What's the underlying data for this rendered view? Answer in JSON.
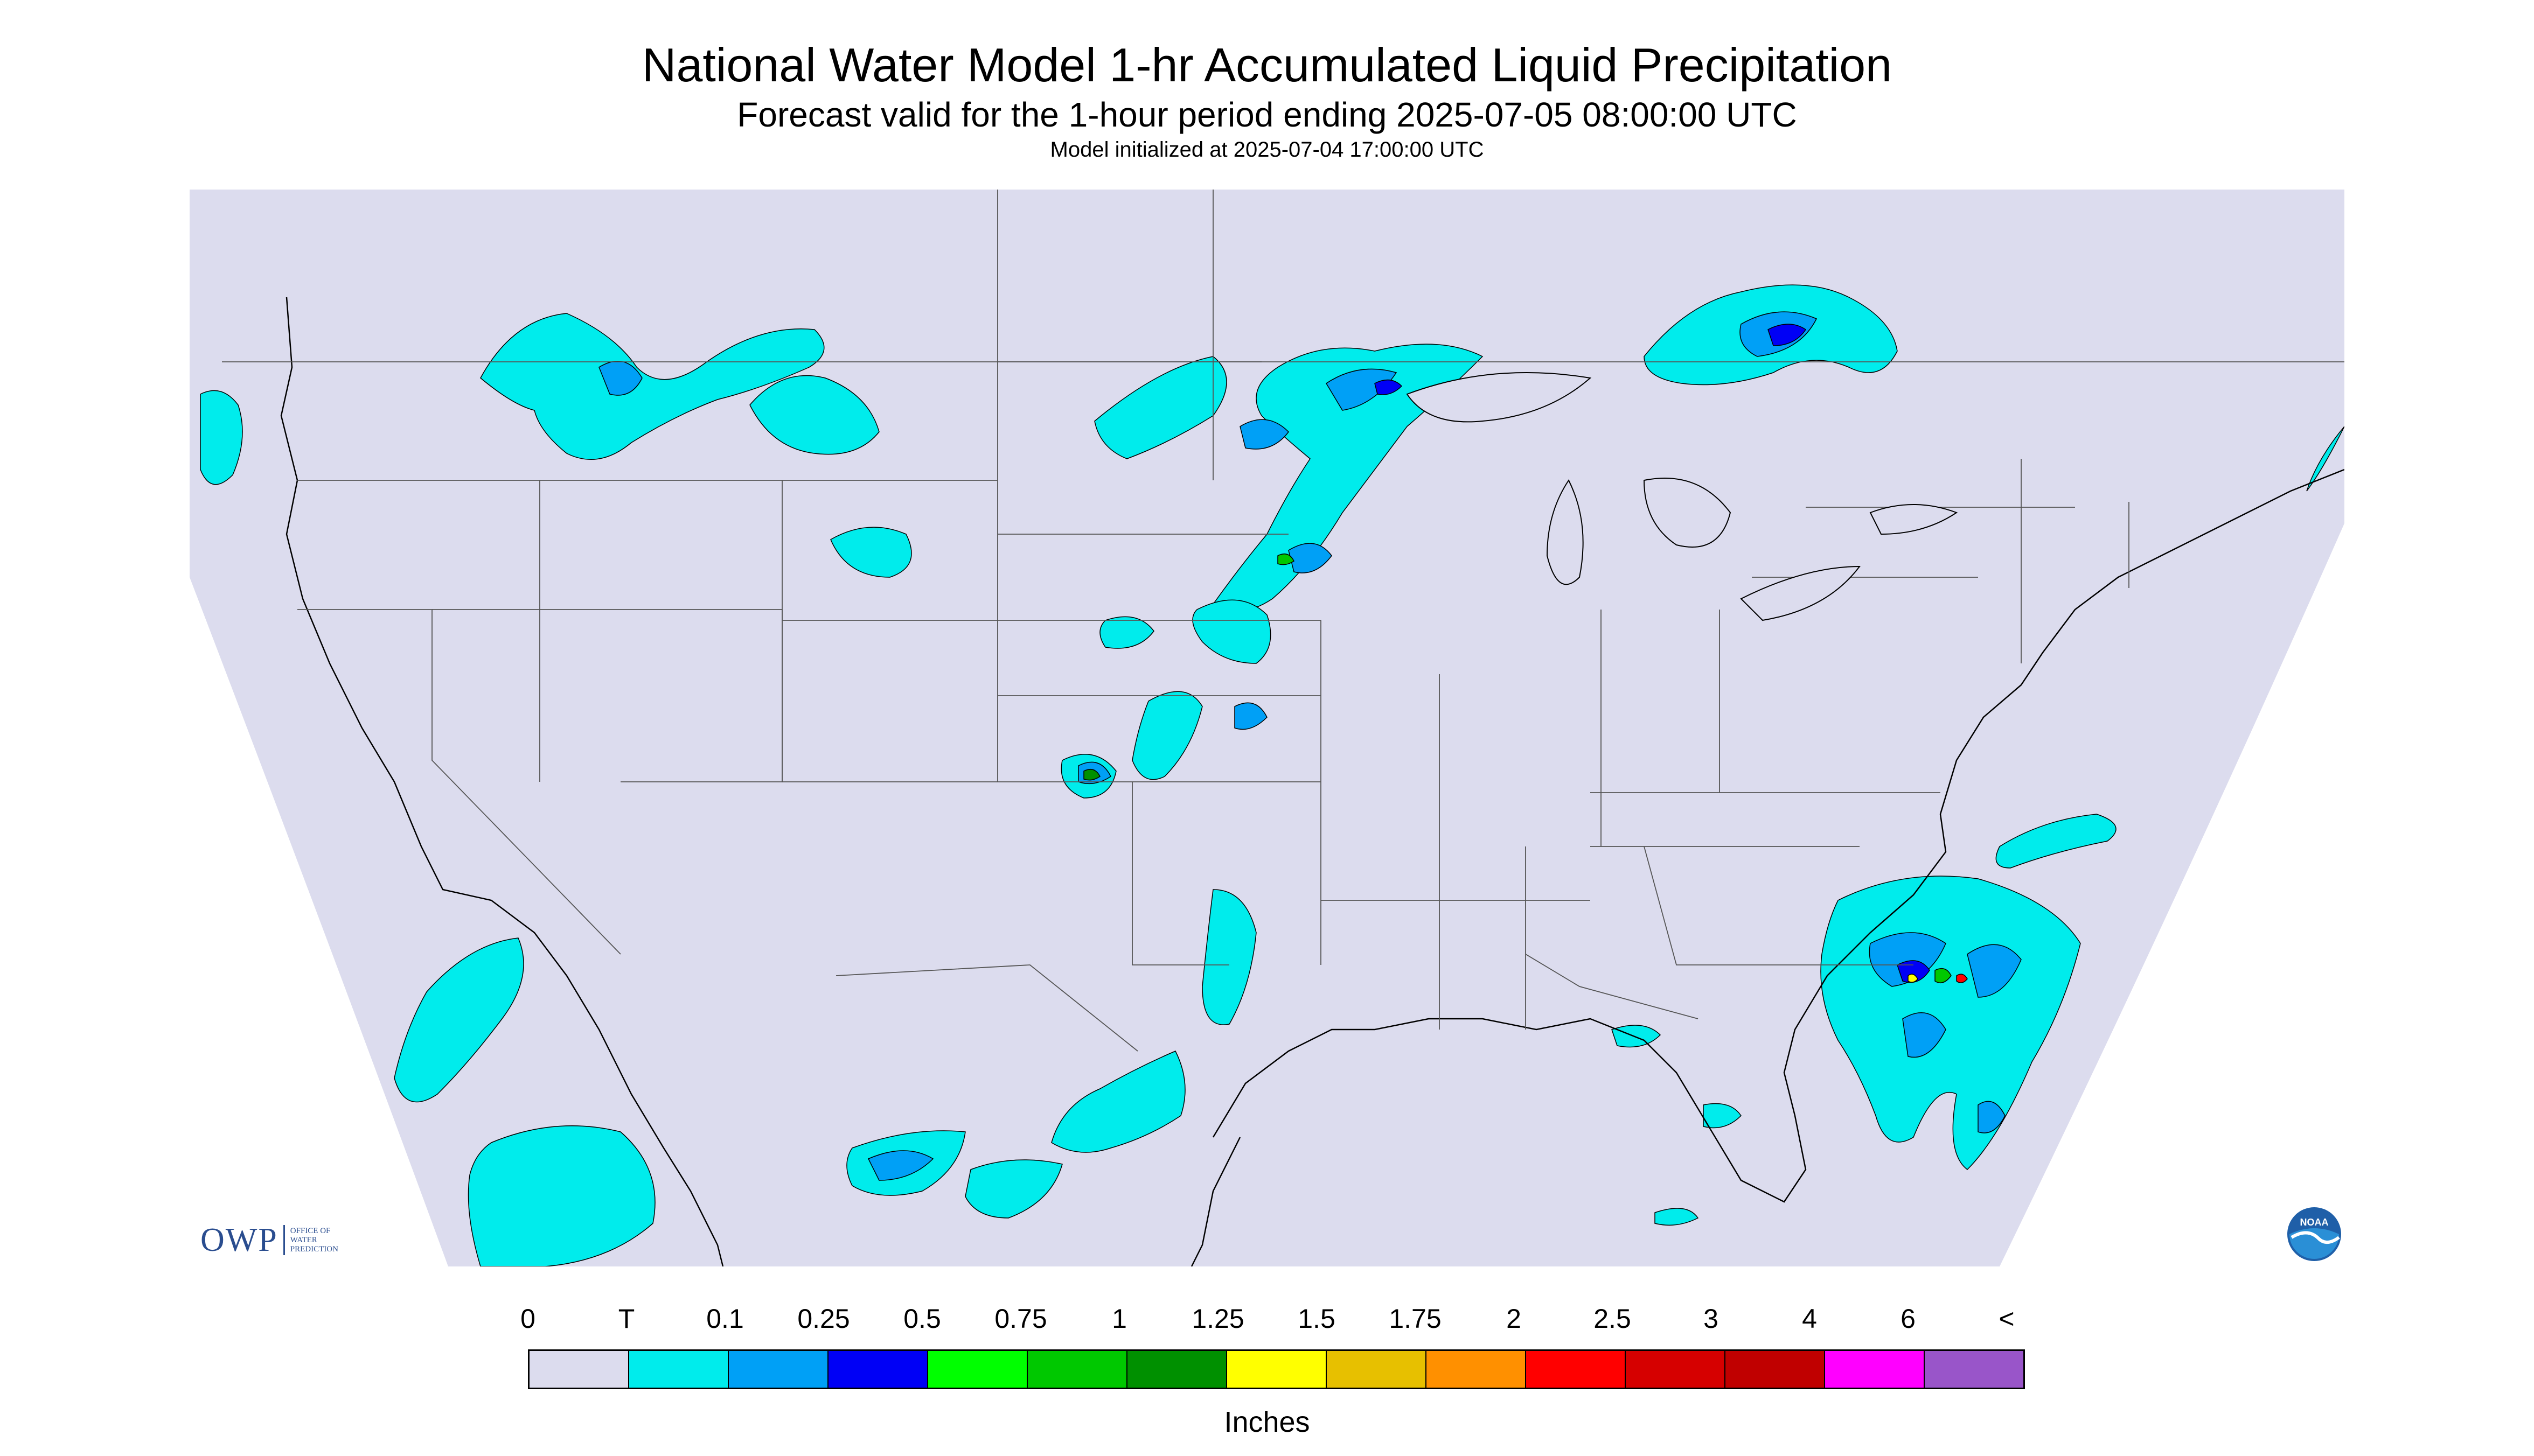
{
  "title": "National Water Model 1-hr Accumulated Liquid Precipitation",
  "subtitle": "Forecast valid for the 1-hour period ending 2025-07-05 08:00:00 UTC",
  "init_line": "Model initialized at 2025-07-04 17:00:00 UTC",
  "legend": {
    "labels": [
      "0",
      "T",
      "0.1",
      "0.25",
      "0.5",
      "0.75",
      "1",
      "1.25",
      "1.5",
      "1.75",
      "2",
      "2.5",
      "3",
      "4",
      "6",
      "<"
    ],
    "colors": [
      "#dcdcee",
      "#00ecec",
      "#00a0f6",
      "#0000f6",
      "#00ff00",
      "#00c800",
      "#009000",
      "#ffff00",
      "#e7c000",
      "#ff9000",
      "#ff0000",
      "#d60000",
      "#c00000",
      "#ff00ff",
      "#9955c9"
    ],
    "units": "Inches"
  },
  "colors": {
    "background": "#dcdcee",
    "outside": "#ffffff",
    "boundary": "#555555",
    "coast": "#000000"
  },
  "logos": {
    "owp_text": "OWP",
    "owp_small": [
      "OFFICE OF",
      "WATER",
      "PREDICTION"
    ],
    "noaa_text": "NOAA"
  }
}
